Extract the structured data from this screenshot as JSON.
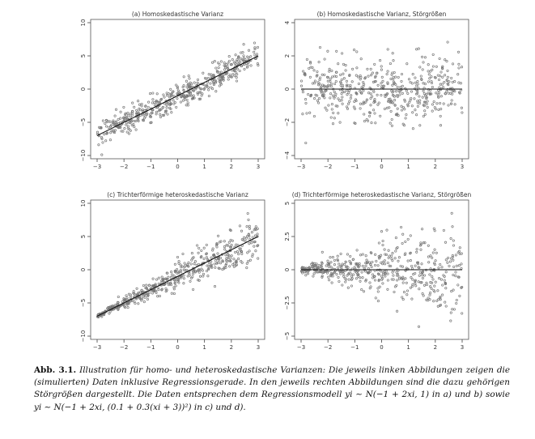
{
  "chart_data": [
    {
      "type": "scatter",
      "title": "(a) Homoskedastische Varianz",
      "xlabel": "",
      "ylabel": "",
      "xlim": [
        -3,
        3
      ],
      "ylim": [
        -10,
        10
      ],
      "xticks": [
        "-3",
        "-2",
        "-1",
        "0",
        "1",
        "2",
        "3"
      ],
      "yticks": [
        "-10",
        "-5",
        "0",
        "5",
        "10"
      ],
      "series": [
        {
          "model": "y = -1 + 2x + e",
          "sd": 1.0,
          "n": 500
        }
      ],
      "fit_line": {
        "intercept": -1,
        "slope": 2
      },
      "grid": false
    },
    {
      "type": "scatter",
      "title": "(b) Homoskedastische Varianz, Störgrößen",
      "xlabel": "",
      "ylabel": "",
      "xlim": [
        -3,
        3
      ],
      "ylim": [
        -4,
        4
      ],
      "xticks": [
        "-3",
        "-2",
        "-1",
        "0",
        "1",
        "2",
        "3"
      ],
      "yticks": [
        "-4",
        "-2",
        "0",
        "2",
        "4"
      ],
      "series": [
        {
          "model": "e",
          "sd": 1.0,
          "n": 500
        }
      ],
      "fit_line": {
        "intercept": 0,
        "slope": 0
      },
      "grid": false
    },
    {
      "type": "scatter",
      "title": "(c) Trichterförmige heteroskedastische Varianz",
      "xlabel": "",
      "ylabel": "",
      "xlim": [
        -3,
        3
      ],
      "ylim": [
        -10,
        10
      ],
      "xticks": [
        "-3",
        "-2",
        "-1",
        "0",
        "1",
        "2",
        "3"
      ],
      "yticks": [
        "-10",
        "-5",
        "0",
        "5",
        "10"
      ],
      "series": [
        {
          "model": "y = -1 + 2x + e, sd = 0.1 + 0.3(x+3)",
          "n": 500
        }
      ],
      "fit_line": {
        "intercept": -1,
        "slope": 2
      },
      "grid": false
    },
    {
      "type": "scatter",
      "title": "(d) Trichterförmige heteroskedastische Varianz, Störgrößen",
      "xlabel": "",
      "ylabel": "",
      "xlim": [
        -3,
        3
      ],
      "ylim": [
        -5,
        5
      ],
      "xticks": [
        "-3",
        "-2",
        "-1",
        "0",
        "1",
        "2",
        "3"
      ],
      "yticks": [
        "-5",
        "-2.5",
        "0",
        "2.5",
        "5"
      ],
      "series": [
        {
          "model": "e, sd = 0.1 + 0.3(x+3)",
          "n": 500
        }
      ],
      "fit_line": {
        "intercept": 0,
        "slope": 0
      },
      "grid": false
    }
  ],
  "caption": {
    "label": "Abb. 3.1.",
    "text": "Illustration für homo- und heteroskedastische Varianzen: Die jeweils linken Abbildungen zeigen die (simulierten) Daten inklusive Regressionsgerade. In den jeweils rechten Abbildungen sind die dazu gehörigen Störgrößen dargestellt. Die Daten entsprechen dem Regressionsmodell yi ∼ N(−1 + 2xi, 1) in a) und b) sowie yi ∼ N(−1 + 2xi, (0.1 + 0.3(xi + 3))²) in c) und d)."
  },
  "colors": {
    "points": "#777777",
    "fit_line": "#111111",
    "frame": "#555555"
  }
}
